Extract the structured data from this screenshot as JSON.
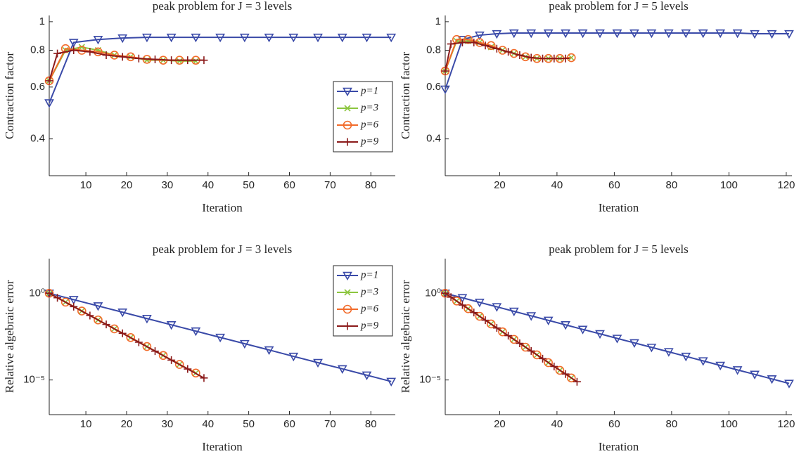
{
  "chart_data": [
    {
      "type": "line",
      "title": "peak problem for J = 3 levels",
      "xlabel": "Iteration",
      "ylabel": "Contraction factor",
      "xlim": [
        1,
        86
      ],
      "ylim": [
        0.3,
        1.05
      ],
      "xticks": [
        10,
        20,
        30,
        40,
        50,
        60,
        70,
        80
      ],
      "yticks": [
        0.4,
        0.6,
        0.8,
        1
      ],
      "yscale": "log",
      "legend": "east",
      "series": [
        {
          "name": "p=1",
          "color": "#3a4aa8",
          "marker": "triangle-down",
          "x": [
            1,
            7,
            13,
            19,
            25,
            31,
            37,
            43,
            49,
            55,
            61,
            67,
            73,
            79,
            85
          ],
          "values": [
            0.53,
            0.85,
            0.87,
            0.88,
            0.885,
            0.885,
            0.885,
            0.885,
            0.885,
            0.885,
            0.885,
            0.885,
            0.885,
            0.885,
            0.885
          ]
        },
        {
          "name": "p=3",
          "color": "#8cc63f",
          "marker": "x",
          "x": [
            1,
            5,
            9,
            13,
            17,
            21,
            25,
            29,
            33,
            37
          ],
          "values": [
            0.63,
            0.8,
            0.82,
            0.8,
            0.77,
            0.76,
            0.74,
            0.74,
            0.735,
            0.735
          ]
        },
        {
          "name": "p=6",
          "color": "#f26b2a",
          "marker": "circle",
          "x": [
            1,
            5,
            9,
            13,
            17,
            21,
            25,
            29,
            33,
            37
          ],
          "values": [
            0.63,
            0.81,
            0.8,
            0.79,
            0.77,
            0.76,
            0.745,
            0.74,
            0.74,
            0.74
          ]
        },
        {
          "name": "p=9",
          "color": "#8b1a1a",
          "marker": "plus",
          "x": [
            1,
            3,
            7,
            11,
            15,
            19,
            23,
            27,
            31,
            35,
            39
          ],
          "values": [
            0.63,
            0.78,
            0.8,
            0.79,
            0.77,
            0.76,
            0.75,
            0.745,
            0.74,
            0.74,
            0.74
          ]
        }
      ]
    },
    {
      "type": "line",
      "title": "peak problem for J = 5 levels",
      "xlabel": "Iteration",
      "ylabel": "Contraction factor",
      "xlim": [
        1,
        122
      ],
      "ylim": [
        0.3,
        1.05
      ],
      "xticks": [
        20,
        40,
        60,
        80,
        100,
        120
      ],
      "yticks": [
        0.4,
        0.6,
        0.8,
        1
      ],
      "yscale": "log",
      "series": [
        {
          "color": "#3a4aa8",
          "marker": "triangle-down",
          "x": [
            1,
            7,
            13,
            19,
            25,
            31,
            37,
            43,
            49,
            55,
            61,
            67,
            73,
            79,
            85,
            91,
            97,
            103,
            109,
            115,
            121
          ],
          "values": [
            0.59,
            0.87,
            0.9,
            0.91,
            0.915,
            0.915,
            0.915,
            0.915,
            0.915,
            0.915,
            0.915,
            0.915,
            0.915,
            0.915,
            0.915,
            0.915,
            0.915,
            0.915,
            0.91,
            0.91,
            0.91
          ]
        },
        {
          "color": "#8cc63f",
          "marker": "x",
          "x": [
            1,
            5,
            9,
            13,
            17,
            21,
            25,
            29,
            33,
            37,
            41,
            45
          ],
          "values": [
            0.68,
            0.86,
            0.86,
            0.85,
            0.82,
            0.8,
            0.78,
            0.76,
            0.75,
            0.75,
            0.75,
            0.755
          ]
        },
        {
          "color": "#f26b2a",
          "marker": "circle",
          "x": [
            1,
            5,
            9,
            13,
            17,
            21,
            25,
            29,
            33,
            37,
            41,
            45
          ],
          "values": [
            0.68,
            0.87,
            0.87,
            0.85,
            0.83,
            0.8,
            0.78,
            0.76,
            0.75,
            0.75,
            0.75,
            0.755
          ]
        },
        {
          "color": "#8b1a1a",
          "marker": "plus",
          "x": [
            1,
            3,
            7,
            11,
            15,
            19,
            23,
            27,
            31,
            35,
            39,
            43
          ],
          "values": [
            0.68,
            0.84,
            0.85,
            0.85,
            0.83,
            0.81,
            0.79,
            0.77,
            0.755,
            0.75,
            0.75,
            0.75
          ]
        }
      ]
    },
    {
      "type": "line",
      "title": "peak problem for J = 3 levels",
      "xlabel": "Iteration",
      "ylabel": "Relative algebraic error",
      "xlim": [
        1,
        86
      ],
      "ylim": [
        1e-07,
        100
      ],
      "xticks": [
        10,
        20,
        30,
        40,
        50,
        60,
        70,
        80
      ],
      "yticks": [
        {
          "value": 1,
          "label": "10⁰"
        },
        {
          "value": 1e-05,
          "label": "10⁻⁵"
        }
      ],
      "yscale": "log",
      "legend": "northeast",
      "series": [
        {
          "name": "p=1",
          "color": "#3a4aa8",
          "marker": "triangle-down",
          "x": [
            1,
            7,
            13,
            19,
            25,
            31,
            37,
            43,
            49,
            55,
            61,
            67,
            73,
            79,
            85
          ],
          "values": [
            1,
            0.43,
            0.187,
            0.081,
            0.035,
            0.0152,
            0.0066,
            0.00285,
            0.00124,
            0.00054,
            0.00023,
            0.0001,
            4.4e-05,
            1.9e-05,
            8.2e-06
          ]
        },
        {
          "name": "p=3",
          "color": "#8cc63f",
          "marker": "x",
          "x": [
            1,
            5,
            9,
            13,
            17,
            21,
            25,
            29,
            33,
            37
          ],
          "values": [
            1,
            0.31,
            0.095,
            0.029,
            0.0089,
            0.0028,
            0.00085,
            0.00026,
            7.9e-05,
            2.5e-05
          ]
        },
        {
          "name": "p=6",
          "color": "#f26b2a",
          "marker": "circle",
          "x": [
            1,
            5,
            9,
            13,
            17,
            21,
            25,
            29,
            33,
            37
          ],
          "values": [
            1,
            0.31,
            0.095,
            0.029,
            0.0089,
            0.0028,
            0.00085,
            0.00026,
            7.9e-05,
            2.5e-05
          ]
        },
        {
          "name": "p=9",
          "color": "#8b1a1a",
          "marker": "plus",
          "x": [
            1,
            3,
            7,
            11,
            15,
            19,
            23,
            27,
            31,
            35,
            39
          ],
          "values": [
            1,
            0.55,
            0.17,
            0.052,
            0.016,
            0.0049,
            0.0015,
            0.00046,
            0.00014,
            4.3e-05,
            1.3e-05
          ]
        }
      ]
    },
    {
      "type": "line",
      "title": "peak problem for J = 5 levels",
      "xlabel": "Iteration",
      "ylabel": "Relative algebraic error",
      "xlim": [
        1,
        122
      ],
      "ylim": [
        1e-07,
        100
      ],
      "xticks": [
        20,
        40,
        60,
        80,
        100,
        120
      ],
      "yticks": [
        {
          "value": 1,
          "label": "10⁰"
        },
        {
          "value": 1e-05,
          "label": "10⁻⁵"
        }
      ],
      "yscale": "log",
      "series": [
        {
          "color": "#3a4aa8",
          "marker": "triangle-down",
          "x": [
            1,
            7,
            13,
            19,
            25,
            31,
            37,
            43,
            49,
            55,
            61,
            67,
            73,
            79,
            85,
            91,
            97,
            103,
            109,
            115,
            121
          ],
          "values": [
            1,
            0.55,
            0.3,
            0.166,
            0.091,
            0.05,
            0.0275,
            0.0151,
            0.0083,
            0.0046,
            0.0025,
            0.00138,
            0.00076,
            0.00042,
            0.00023,
            0.000126,
            6.9e-05,
            3.8e-05,
            2.1e-05,
            1.15e-05,
            6.3e-06
          ]
        },
        {
          "color": "#8cc63f",
          "marker": "x",
          "x": [
            1,
            5,
            9,
            13,
            17,
            21,
            25,
            29,
            33,
            37,
            41,
            45
          ],
          "values": [
            1,
            0.36,
            0.13,
            0.047,
            0.017,
            0.006,
            0.0022,
            0.00078,
            0.00028,
            0.0001,
            3.6e-05,
            1.3e-05
          ]
        },
        {
          "color": "#f26b2a",
          "marker": "circle",
          "x": [
            1,
            5,
            9,
            13,
            17,
            21,
            25,
            29,
            33,
            37,
            41,
            45
          ],
          "values": [
            1,
            0.36,
            0.13,
            0.047,
            0.017,
            0.006,
            0.0022,
            0.00078,
            0.00028,
            0.0001,
            3.6e-05,
            1.3e-05
          ]
        },
        {
          "color": "#8b1a1a",
          "marker": "plus",
          "x": [
            1,
            3,
            7,
            11,
            15,
            19,
            23,
            27,
            31,
            35,
            39,
            43,
            47
          ],
          "values": [
            1,
            0.6,
            0.21,
            0.078,
            0.028,
            0.01,
            0.0036,
            0.0013,
            0.00047,
            0.00017,
            6e-05,
            2.2e-05,
            7.9e-06
          ]
        }
      ]
    }
  ]
}
